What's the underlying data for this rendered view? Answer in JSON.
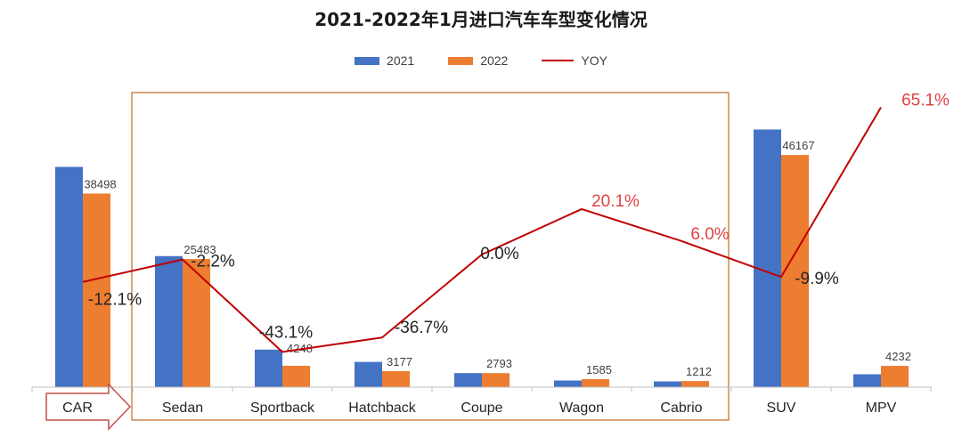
{
  "chart_data": {
    "type": "bar",
    "title": "2021-2022年1月进口汽车车型变化情况",
    "categories": [
      "CAR",
      "Sedan",
      "Sportback",
      "Hatchback",
      "Coupe",
      "Wagon",
      "Cabrio",
      "SUV",
      "MPV"
    ],
    "series": [
      {
        "name": "2021",
        "color": "#4472c4",
        "values": [
          43800,
          26060,
          7460,
          5020,
          2793,
          1320,
          1143,
          51240,
          2563
        ]
      },
      {
        "name": "2022",
        "color": "#ed7d31",
        "values": [
          38498,
          25483,
          4248,
          3177,
          2793,
          1585,
          1212,
          46167,
          4232
        ]
      },
      {
        "name": "YOY",
        "type": "line",
        "color": "#c00000",
        "values": [
          -12.1,
          -2.2,
          -43.1,
          -36.7,
          0.0,
          20.1,
          6.0,
          -9.9,
          65.1
        ]
      }
    ],
    "bar_labels": [
      "38498",
      "25483",
      "4248",
      "3177",
      "2793",
      "1585",
      "1212",
      "46167",
      "4232"
    ],
    "yoy_labels": [
      "-12.1%",
      "-2.2%",
      "-43.1%",
      "-36.7%",
      "0.0%",
      "20.1%",
      "6.0%",
      "-9.9%",
      "65.1%"
    ],
    "yoy_highlight_color": "#e04343",
    "ylim": [
      0,
      60000
    ],
    "grid": false,
    "legend_position": "top-center",
    "annotations": [
      "CAR category marked with an arrow",
      "Sedan through Cabrio enclosed in a box"
    ],
    "box_color": "#c87533"
  }
}
